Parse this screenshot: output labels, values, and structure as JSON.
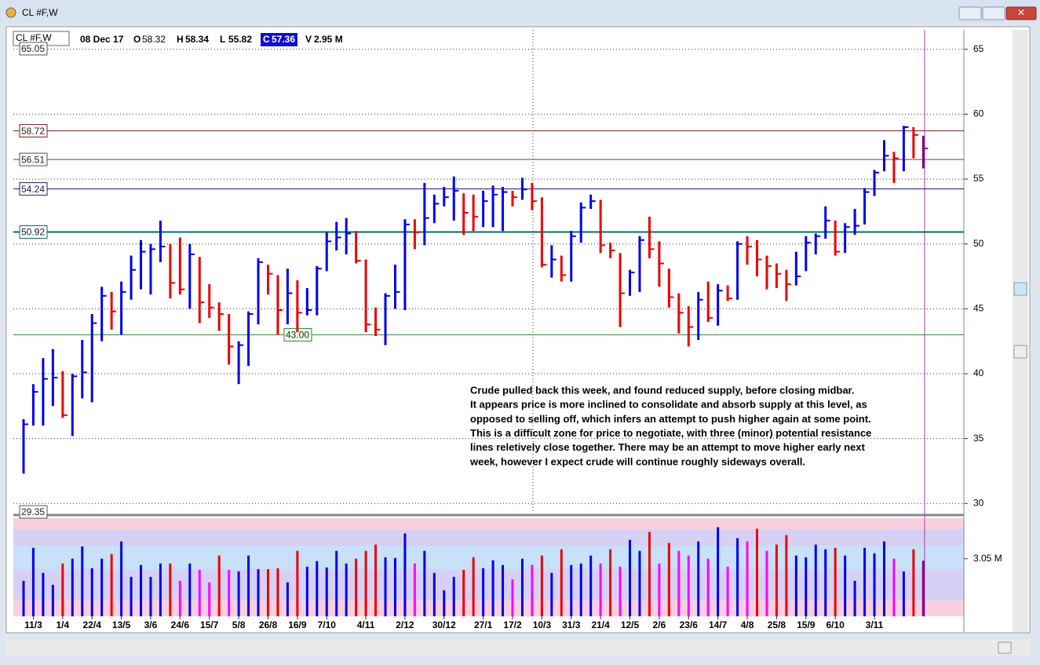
{
  "window": {
    "title": "CL #F,W"
  },
  "header": {
    "symbol": "CL #F,W",
    "date": "08 Dec 17",
    "fields": [
      {
        "label": "O",
        "value": 58.32
      },
      {
        "label": "H",
        "value": 58.34
      },
      {
        "label": "L",
        "value": 55.82
      },
      {
        "label": "C",
        "value": 57.36
      },
      {
        "label": "V",
        "value": "2.95 M"
      }
    ]
  },
  "chart_data": {
    "type": "ohlc",
    "categories": [
      null,
      "11/3",
      null,
      null,
      "1/4",
      null,
      null,
      "22/4",
      null,
      null,
      "13/5",
      null,
      null,
      "3/6",
      null,
      null,
      "24/6",
      null,
      null,
      "15/7",
      null,
      null,
      "5/8",
      null,
      null,
      "26/8",
      null,
      null,
      "16/9",
      null,
      null,
      "7/10",
      null,
      null,
      null,
      "4/11",
      null,
      null,
      null,
      "2/12",
      null,
      null,
      null,
      "30/12",
      null,
      null,
      null,
      "27/1",
      null,
      null,
      "17/2",
      null,
      null,
      "10/3",
      null,
      null,
      "31/3",
      null,
      null,
      "21/4",
      null,
      null,
      "12/5",
      null,
      null,
      "2/6",
      null,
      null,
      "23/6",
      null,
      null,
      "14/7",
      null,
      null,
      "4/8",
      null,
      null,
      "25/8",
      null,
      null,
      "15/9",
      null,
      null,
      "6/10",
      null,
      null,
      null,
      "3/11",
      null,
      null,
      null,
      null,
      null
    ],
    "high": [
      36.5,
      39.2,
      41.2,
      41.9,
      40.2,
      40,
      42.6,
      44.6,
      46.7,
      46.3,
      47.1,
      49.1,
      50.3,
      50,
      51.8,
      50,
      50.5,
      50,
      49,
      46.9,
      45.5,
      44.6,
      42.5,
      44.8,
      48.9,
      48.4,
      47.6,
      48.1,
      47.2,
      46.6,
      48.3,
      50.9,
      51.7,
      52,
      51,
      48.8,
      45.1,
      46.2,
      48.4,
      51.9,
      51.9,
      54.7,
      53.8,
      54.4,
      55.2,
      53.9,
      53.8,
      54.1,
      54.5,
      54.4,
      54.1,
      55.1,
      54.7,
      53.6,
      49.9,
      49.1,
      51,
      53.2,
      53.8,
      53.4,
      50.1,
      49.3,
      48,
      50.6,
      52.1,
      50.2,
      48.1,
      46.2,
      45.2,
      46.3,
      47.1,
      46.9,
      46.8,
      50.2,
      50.6,
      50.3,
      49.1,
      48.5,
      48,
      49.4,
      50.6,
      50.8,
      52.9,
      51.8,
      51.6,
      52.7,
      54.3,
      55.7,
      58,
      57.1,
      59.1,
      59,
      58.34
    ],
    "low": [
      32.3,
      36,
      36,
      37.5,
      36.6,
      35.2,
      38.1,
      37.8,
      42.5,
      43.4,
      43,
      45.7,
      46.5,
      46.1,
      48.6,
      45.8,
      46.1,
      45,
      43.9,
      44.3,
      43.3,
      40.7,
      39.2,
      40.6,
      43.8,
      46.1,
      43,
      43.8,
      43.2,
      44.5,
      44.5,
      47.9,
      49.5,
      49.2,
      48.5,
      43.2,
      42.9,
      42.2,
      45,
      44.9,
      49.6,
      49.9,
      51.6,
      52.9,
      51.8,
      50.7,
      51,
      51.3,
      51.3,
      51,
      52.9,
      53.4,
      52.6,
      48.2,
      47.4,
      47.1,
      47.1,
      50.1,
      52.7,
      49.3,
      48.9,
      43.6,
      46,
      46.3,
      48.9,
      46.7,
      45.1,
      43.1,
      42.1,
      42.6,
      44,
      43.7,
      45.6,
      45.7,
      48.4,
      47.5,
      46.5,
      46.6,
      45.6,
      46.8,
      47.9,
      49.2,
      50.4,
      49.1,
      49.3,
      50.7,
      51.5,
      53.7,
      55.6,
      54.7,
      55.6,
      56.6,
      55.82
    ],
    "close": [
      36.1,
      38.6,
      39.6,
      39.7,
      36.8,
      39.8,
      40.1,
      43.9,
      46,
      44.8,
      46.3,
      48,
      49.4,
      49.6,
      49.8,
      47,
      46.5,
      49.2,
      45.5,
      45.1,
      44.6,
      42.1,
      42.2,
      44.6,
      48.6,
      47.7,
      44.9,
      46.2,
      44.7,
      44.9,
      48.1,
      50.2,
      50.5,
      50.8,
      48.7,
      43.8,
      43.4,
      46,
      46.3,
      51.5,
      50.9,
      52,
      53.1,
      53.6,
      54.1,
      52.4,
      52.1,
      53.3,
      53.8,
      54,
      53.6,
      54.2,
      53.3,
      48.4,
      48.8,
      47.6,
      50.6,
      52.8,
      53.3,
      49.9,
      49.5,
      46.2,
      47.8,
      50.3,
      49.6,
      48.5,
      45.9,
      44.7,
      43.6,
      45.7,
      44.3,
      46.4,
      45.8,
      50,
      49.8,
      48.8,
      48.3,
      47.7,
      46.9,
      47.5,
      50.1,
      50.6,
      51.8,
      49.4,
      51.3,
      51.4,
      54,
      55.5,
      56.8,
      56.6,
      59,
      58.4,
      57.36
    ],
    "volume": [
      1.88,
      3.63,
      2.3,
      1.67,
      2.8,
      3.05,
      3.7,
      2.55,
      3.05,
      3.3,
      3.97,
      2.09,
      2.72,
      2.09,
      2.8,
      2.8,
      1.88,
      2.8,
      2.46,
      1.8,
      3.22,
      2.46,
      2.38,
      3.22,
      2.5,
      2.5,
      2.55,
      1.8,
      3.47,
      2.63,
      2.92,
      2.59,
      3.47,
      2.8,
      3.05,
      3.47,
      3.8,
      3.13,
      3.09,
      4.39,
      2.8,
      3.47,
      2.3,
      1.38,
      2.09,
      2.46,
      3.13,
      2.55,
      2.97,
      2.72,
      1.96,
      3.05,
      2.72,
      3.22,
      2.3,
      3.55,
      2.72,
      2.8,
      3.22,
      2.8,
      3.55,
      2.63,
      4.05,
      3.47,
      4.47,
      2.8,
      3.89,
      3.47,
      3.22,
      3.97,
      3.05,
      4.72,
      2.63,
      4.14,
      3.97,
      4.64,
      3.47,
      3.8,
      4.3,
      3.22,
      3.13,
      3.8,
      3.55,
      3.63,
      3.22,
      1.88,
      3.63,
      3.34,
      3.97,
      3.05,
      2.38,
      3.55,
      2.95
    ],
    "up_color": "#0000ee",
    "down_color": "#ee0000",
    "low_volume_color": "#ff00ff",
    "current_color": "#800080",
    "ylim": [
      29.35,
      66.5
    ],
    "yticks": [
      30,
      35,
      40,
      45,
      50,
      55,
      60,
      65
    ],
    "volume_lim": [
      0,
      5.2
    ],
    "volume_ticks": [
      {
        "value": 3.05,
        "label": "3.05 M"
      }
    ],
    "levels": [
      {
        "value": 65.05,
        "label": "65.05",
        "color": "#555555",
        "line": false
      },
      {
        "value": 58.72,
        "label": "58.72",
        "color": "#8b1a1a",
        "line": true
      },
      {
        "value": 56.51,
        "label": "56.51",
        "color": "#8b3a3a",
        "line": true
      },
      {
        "value": 54.24,
        "label": "54.24",
        "color": "#1a1a7a",
        "line": true
      },
      {
        "value": 50.92,
        "label": "50.92",
        "color": "#007060",
        "line": true
      },
      {
        "value": 43,
        "label": "43.00",
        "color": "#2a8a2a",
        "line": true
      },
      {
        "value": 29.35,
        "label": "29.35",
        "color": "#555555",
        "line": false
      }
    ],
    "annotation": [
      "Crude pulled back this week, and found reduced supply, before closing midbar.",
      "It appears price is more inclined to consolidate and absorb supply at this level, as",
      "opposed to selling off, which infers an attempt to push higher again at some point.",
      "This is a difficult zone for price to negotiate, with three (minor) potential resistance",
      "lines reletively close together.  There may be an attempt to move higher early next",
      "week, however I expect crude will continue roughly sideways overall."
    ],
    "grid": true
  }
}
